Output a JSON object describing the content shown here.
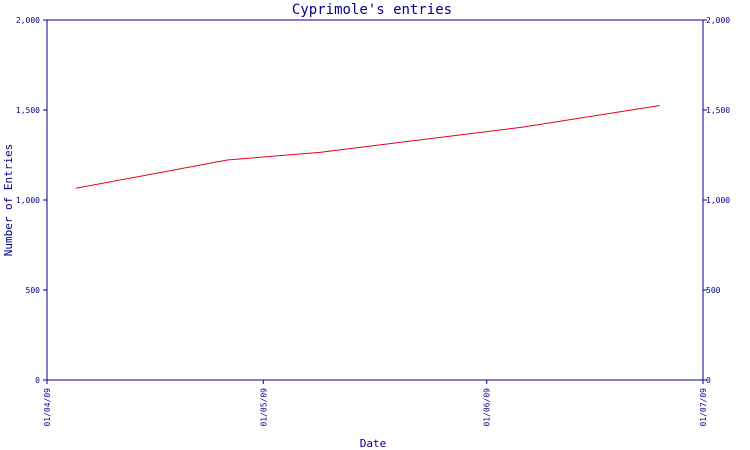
{
  "chart_data": {
    "type": "line",
    "title": "Cyprimole's entries",
    "xlabel": "Date",
    "ylabel": "Number of Entries",
    "x_ticks": [
      "01/04/09",
      "01/05/09",
      "01/06/09",
      "01/07/09"
    ],
    "y_ticks": [
      "0",
      "500",
      "1,000",
      "1,500",
      "2,000"
    ],
    "ylim": [
      0,
      2000
    ],
    "xlim": [
      "2009-04-01",
      "2009-07-01"
    ],
    "grid": false,
    "secondary_y_axis": true,
    "series": [
      {
        "color": "#e8001a",
        "points": [
          {
            "x": "2009-04-05",
            "y": 1065
          },
          {
            "x": "2009-04-26",
            "y": 1222
          },
          {
            "x": "2009-05-09",
            "y": 1265
          },
          {
            "x": "2009-06-06",
            "y": 1405
          },
          {
            "x": "2009-06-25",
            "y": 1525
          }
        ]
      }
    ],
    "colors": {
      "axis": "#00008b",
      "line": "#e8001a",
      "background": "#ffffff"
    }
  }
}
